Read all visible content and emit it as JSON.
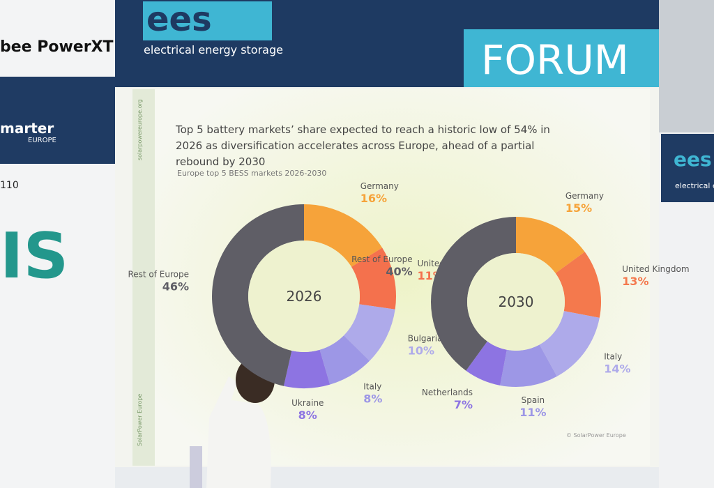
{
  "banner": {
    "logo": "ees",
    "tagline": "electrical energy storage",
    "forum": "FORUM"
  },
  "left_booth": {
    "brand_top": "bee PowerXT",
    "brand_mid": "marter",
    "brand_mid_sub": "EUROPE",
    "number": "110",
    "big_letters": "IS"
  },
  "right_booth": {
    "logo": "ees",
    "tagline": "electrical ener"
  },
  "slide": {
    "title": "Top 5 battery markets’ share expected to reach a historic low of 54% in 2026 as diversification accelerates across Europe, ahead of a partial rebound by 2030",
    "subtitle": "Europe top 5 BESS markets 2026-2030",
    "side_url": "solarpowereurope.org",
    "side_brand": "SolarPower Europe",
    "credit": "© SolarPower Europe"
  },
  "chart_data": [
    {
      "type": "pie",
      "donut": true,
      "center_label": "2026",
      "categories": [
        "Germany",
        "United Kingdom",
        "Bulgaria",
        "Italy",
        "Ukraine",
        "Rest of Europe"
      ],
      "values": [
        16,
        11,
        10,
        8,
        8,
        46
      ],
      "value_labels": [
        "16%",
        "11%",
        "10%",
        "8%",
        "8%",
        "46%"
      ],
      "colors": [
        "#f6a33a",
        "#f4714d",
        "#aeaaea",
        "#9d97e6",
        "#8d74e2",
        "#5f5e66"
      ]
    },
    {
      "type": "pie",
      "donut": true,
      "center_label": "2030",
      "categories": [
        "Germany",
        "United Kingdom",
        "Italy",
        "Spain",
        "Netherlands",
        "Rest of Europe"
      ],
      "values": [
        15,
        13,
        14,
        11,
        7,
        40
      ],
      "value_labels": [
        "15%",
        "13%",
        "14%",
        "11%",
        "7%",
        "40%"
      ],
      "colors": [
        "#f6a33a",
        "#f4794d",
        "#aeaaea",
        "#9d97e6",
        "#8d74e2",
        "#5f5e66"
      ]
    }
  ]
}
